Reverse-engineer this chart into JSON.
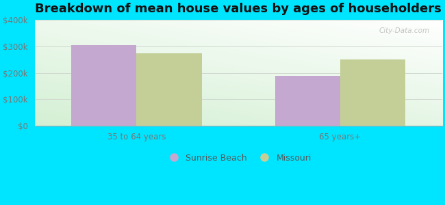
{
  "title": "Breakdown of mean house values by ages of householders",
  "categories": [
    "35 to 64 years",
    "65 years+"
  ],
  "sunrise_beach_values": [
    305000,
    190000
  ],
  "missouri_values": [
    275000,
    250000
  ],
  "sunrise_beach_color": "#c4a8d0",
  "missouri_color": "#c4cf98",
  "bar_width": 0.32,
  "ylim": [
    0,
    400000
  ],
  "yticks": [
    0,
    100000,
    200000,
    300000,
    400000
  ],
  "ytick_labels": [
    "$0",
    "$100k",
    "$200k",
    "$300k",
    "$400k"
  ],
  "background_color": "#00e5ff",
  "plot_bg_top": "#ffffff",
  "plot_bg_bottom": "#d4f0d4",
  "title_fontsize": 13,
  "legend_labels": [
    "Sunrise Beach",
    "Missouri"
  ],
  "watermark": "City-Data.com",
  "grid_color": "#d0d8d0",
  "tick_color": "#777777",
  "tick_fontsize": 8.5
}
